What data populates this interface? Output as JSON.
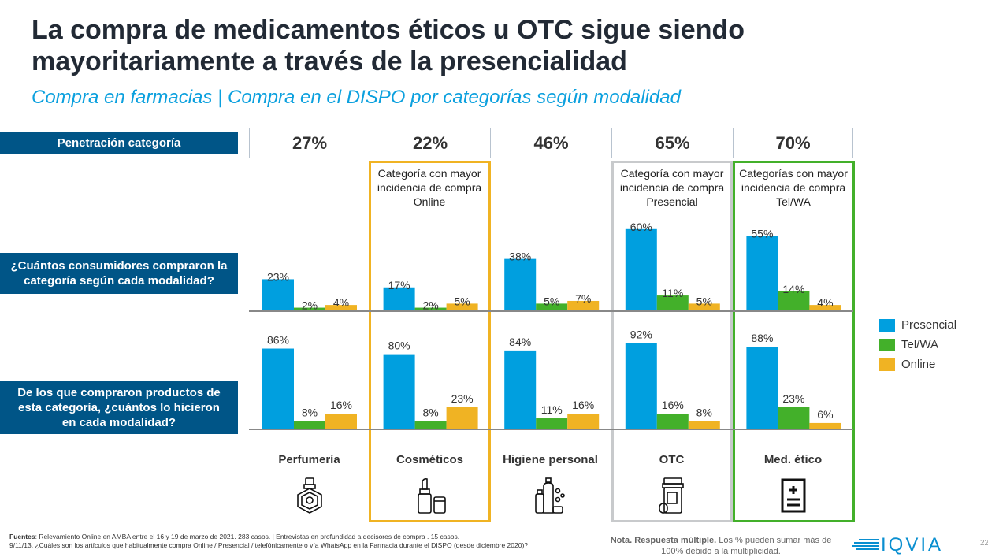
{
  "header": {
    "title": "La compra de medicamentos éticos u OTC sigue siendo mayoritariamente a través de la presencialidad",
    "subtitle": "Compra en farmacias | Compra en el DISPO por categorías según modalidad"
  },
  "row_labels": {
    "penetration": "Penetración categoría",
    "q1": "¿Cuántos consumidores compraron la categoría según cada modalidad?",
    "q2": "De los que compraron productos de esta categoría, ¿cuántos lo hicieron en cada modalidad?"
  },
  "colors": {
    "presencial": "#009fdf",
    "telwa": "#43b02a",
    "online": "#f0b323",
    "header_band": "#005587",
    "highlight_online": "#f0b323",
    "highlight_presencial": "#c8cacc",
    "highlight_telwa": "#43b02a"
  },
  "highlights": {
    "online": "Categoría con mayor incidencia de compra Online",
    "presencial": "Categoría con mayor incidencia de compra Presencial",
    "telwa": "Categorías con mayor incidencia de compra Tel/WA"
  },
  "categories": [
    {
      "name": "Perfumería",
      "penetration": "27%",
      "icon": "perfume-bottle-icon"
    },
    {
      "name": "Cosméticos",
      "penetration": "22%",
      "icon": "lipstick-icon"
    },
    {
      "name": "Higiene personal",
      "penetration": "46%",
      "icon": "hygiene-products-icon"
    },
    {
      "name": "OTC",
      "penetration": "65%",
      "icon": "pill-bottle-icon"
    },
    {
      "name": "Med. ético",
      "penetration": "70%",
      "icon": "prescription-icon"
    }
  ],
  "legend": [
    "Presencial",
    "Tel/WA",
    "Online"
  ],
  "chart_data": [
    {
      "type": "bar",
      "title": "¿Cuántos consumidores compraron la categoría según cada modalidad?",
      "categories": [
        "Perfumería",
        "Cosméticos",
        "Higiene personal",
        "OTC",
        "Med. ético"
      ],
      "series": [
        {
          "name": "Presencial",
          "values": [
            23,
            17,
            38,
            60,
            55
          ]
        },
        {
          "name": "Tel/WA",
          "values": [
            2,
            2,
            5,
            11,
            14
          ]
        },
        {
          "name": "Online",
          "values": [
            4,
            5,
            7,
            5,
            4
          ]
        }
      ],
      "ylim": [
        0,
        100
      ],
      "unit": "%",
      "grid": false
    },
    {
      "type": "bar",
      "title": "De los que compraron productos de esta categoría, ¿cuántos lo hicieron en cada modalidad?",
      "categories": [
        "Perfumería",
        "Cosméticos",
        "Higiene personal",
        "OTC",
        "Med. ético"
      ],
      "series": [
        {
          "name": "Presencial",
          "values": [
            86,
            80,
            84,
            92,
            88
          ]
        },
        {
          "name": "Tel/WA",
          "values": [
            8,
            8,
            11,
            16,
            23
          ]
        },
        {
          "name": "Online",
          "values": [
            16,
            23,
            16,
            8,
            6
          ]
        }
      ],
      "ylim": [
        0,
        100
      ],
      "unit": "%",
      "grid": false
    }
  ],
  "footer": {
    "sources_label": "Fuentes",
    "sources_text": ": Relevamiento Online en AMBA entre el 16 y 19 de marzo de 2021. 283 casos. | Entrevistas en profundidad a decisores de compra . 15 casos.",
    "question_text": "9/11/13. ¿Cuáles son los artículos que habitualmente compra Online / Presencial / telefónicamente o vía WhatsApp en la Farmacia durante el DISPO (desde diciembre 2020)?",
    "note_bold": "Nota. Respuesta múltiple.",
    "note_text": " Los % pueden sumar más de 100% debido a la multiplicidad.",
    "logo": "IQVIA",
    "page": "22"
  }
}
